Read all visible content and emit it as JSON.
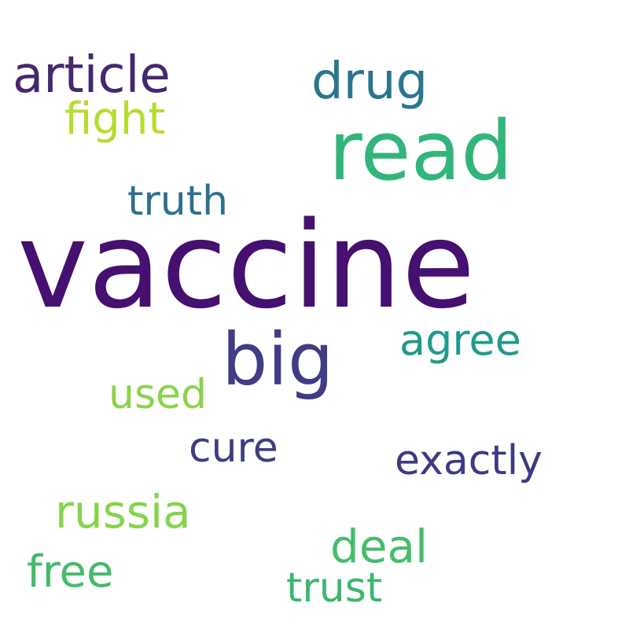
{
  "background": "#ffffff",
  "words": [
    {
      "id": "vaccine",
      "text": "vaccine",
      "color": "#45106f"
    },
    {
      "id": "read",
      "text": "read",
      "color": "#31b57a"
    },
    {
      "id": "big",
      "text": "big",
      "color": "#423c85"
    },
    {
      "id": "article",
      "text": "article",
      "color": "#45286e"
    },
    {
      "id": "drug",
      "text": "drug",
      "color": "#2a768e"
    },
    {
      "id": "fight",
      "text": "fight",
      "color": "#b4dd2e"
    },
    {
      "id": "truth",
      "text": "truth",
      "color": "#2f6f8e"
    },
    {
      "id": "agree",
      "text": "agree",
      "color": "#209a8c"
    },
    {
      "id": "used",
      "text": "used",
      "color": "#8bd24a"
    },
    {
      "id": "cure",
      "text": "cure",
      "color": "#3e3d84"
    },
    {
      "id": "exactly",
      "text": "exactly",
      "color": "#3d3a83"
    },
    {
      "id": "russia",
      "text": "russia",
      "color": "#85d44a"
    },
    {
      "id": "deal",
      "text": "deal",
      "color": "#45bd6b"
    },
    {
      "id": "free",
      "text": "free",
      "color": "#44bb6b"
    },
    {
      "id": "trust",
      "text": "trust",
      "color": "#3bb76f"
    }
  ]
}
